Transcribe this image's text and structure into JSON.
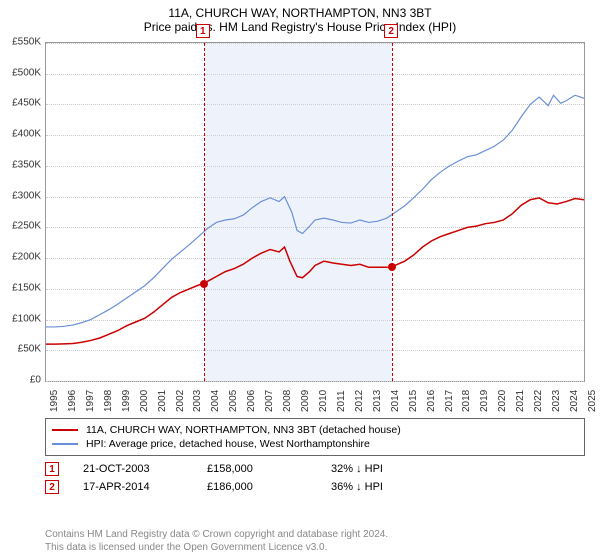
{
  "titles": {
    "line1": "11A, CHURCH WAY, NORTHAMPTON, NN3 3BT",
    "line2": "Price paid vs. HM Land Registry's House Price Index (HPI)",
    "fontsize": 12
  },
  "chart": {
    "type": "line",
    "background_color": "#ffffff",
    "grid_color": "#cccccc",
    "border_color": "#999999",
    "highlight_band_color": "#eef3fb",
    "y": {
      "min": 0,
      "max": 550000,
      "step": 50000,
      "prefix": "£",
      "suffix": "K",
      "divisor": 1000,
      "label_fontsize": 10
    },
    "x": {
      "years_start": 1995,
      "years_end": 2025,
      "label_fontsize": 10
    },
    "highlight": {
      "from_year": 2003.8,
      "to_year": 2014.3
    },
    "series": [
      {
        "name": "11A, CHURCH WAY, NORTHAMPTON, NN3 3BT (detached house)",
        "color": "#cc0000",
        "line_width": 1.5,
        "data": [
          [
            1995,
            60000
          ],
          [
            1995.5,
            60000
          ],
          [
            1996,
            60500
          ],
          [
            1996.5,
            61000
          ],
          [
            1997,
            63000
          ],
          [
            1997.5,
            66000
          ],
          [
            1998,
            70000
          ],
          [
            1998.5,
            76000
          ],
          [
            1999,
            82000
          ],
          [
            1999.5,
            90000
          ],
          [
            2000,
            96000
          ],
          [
            2000.5,
            102000
          ],
          [
            2001,
            112000
          ],
          [
            2001.5,
            124000
          ],
          [
            2002,
            136000
          ],
          [
            2002.5,
            144000
          ],
          [
            2003,
            150000
          ],
          [
            2003.5,
            156000
          ],
          [
            2003.8,
            158000
          ],
          [
            2004,
            162000
          ],
          [
            2004.5,
            170000
          ],
          [
            2005,
            178000
          ],
          [
            2005.5,
            183000
          ],
          [
            2006,
            190000
          ],
          [
            2006.5,
            200000
          ],
          [
            2007,
            208000
          ],
          [
            2007.5,
            214000
          ],
          [
            2008,
            210000
          ],
          [
            2008.3,
            218000
          ],
          [
            2008.6,
            195000
          ],
          [
            2009,
            170000
          ],
          [
            2009.3,
            168000
          ],
          [
            2009.7,
            178000
          ],
          [
            2010,
            188000
          ],
          [
            2010.5,
            195000
          ],
          [
            2011,
            192000
          ],
          [
            2011.5,
            190000
          ],
          [
            2012,
            188000
          ],
          [
            2012.5,
            190000
          ],
          [
            2013,
            185000
          ],
          [
            2013.5,
            185000
          ],
          [
            2014,
            185000
          ],
          [
            2014.3,
            186000
          ],
          [
            2015,
            195000
          ],
          [
            2015.5,
            205000
          ],
          [
            2016,
            218000
          ],
          [
            2016.5,
            228000
          ],
          [
            2017,
            235000
          ],
          [
            2017.5,
            240000
          ],
          [
            2018,
            245000
          ],
          [
            2018.5,
            250000
          ],
          [
            2019,
            252000
          ],
          [
            2019.5,
            256000
          ],
          [
            2020,
            258000
          ],
          [
            2020.5,
            262000
          ],
          [
            2021,
            272000
          ],
          [
            2021.5,
            286000
          ],
          [
            2022,
            295000
          ],
          [
            2022.5,
            298000
          ],
          [
            2023,
            290000
          ],
          [
            2023.5,
            288000
          ],
          [
            2024,
            292000
          ],
          [
            2024.5,
            297000
          ],
          [
            2025,
            295000
          ]
        ]
      },
      {
        "name": "HPI: Average price, detached house, West Northamptonshire",
        "color": "#6a8fd8",
        "line_width": 1.2,
        "data": [
          [
            1995,
            88000
          ],
          [
            1995.5,
            88000
          ],
          [
            1996,
            89000
          ],
          [
            1996.5,
            91000
          ],
          [
            1997,
            95000
          ],
          [
            1997.5,
            100000
          ],
          [
            1998,
            108000
          ],
          [
            1998.5,
            116000
          ],
          [
            1999,
            125000
          ],
          [
            1999.5,
            135000
          ],
          [
            2000,
            145000
          ],
          [
            2000.5,
            155000
          ],
          [
            2001,
            168000
          ],
          [
            2001.5,
            183000
          ],
          [
            2002,
            198000
          ],
          [
            2002.5,
            210000
          ],
          [
            2003,
            222000
          ],
          [
            2003.5,
            235000
          ],
          [
            2004,
            248000
          ],
          [
            2004.5,
            258000
          ],
          [
            2005,
            262000
          ],
          [
            2005.5,
            264000
          ],
          [
            2006,
            270000
          ],
          [
            2006.5,
            282000
          ],
          [
            2007,
            292000
          ],
          [
            2007.5,
            298000
          ],
          [
            2008,
            292000
          ],
          [
            2008.3,
            300000
          ],
          [
            2008.7,
            275000
          ],
          [
            2009,
            245000
          ],
          [
            2009.3,
            240000
          ],
          [
            2009.7,
            252000
          ],
          [
            2010,
            262000
          ],
          [
            2010.5,
            265000
          ],
          [
            2011,
            262000
          ],
          [
            2011.5,
            258000
          ],
          [
            2012,
            257000
          ],
          [
            2012.5,
            262000
          ],
          [
            2013,
            258000
          ],
          [
            2013.5,
            260000
          ],
          [
            2014,
            265000
          ],
          [
            2014.5,
            275000
          ],
          [
            2015,
            285000
          ],
          [
            2015.5,
            298000
          ],
          [
            2016,
            312000
          ],
          [
            2016.5,
            328000
          ],
          [
            2017,
            340000
          ],
          [
            2017.5,
            350000
          ],
          [
            2018,
            358000
          ],
          [
            2018.5,
            365000
          ],
          [
            2019,
            368000
          ],
          [
            2019.5,
            375000
          ],
          [
            2020,
            382000
          ],
          [
            2020.5,
            392000
          ],
          [
            2021,
            408000
          ],
          [
            2021.5,
            430000
          ],
          [
            2022,
            450000
          ],
          [
            2022.5,
            462000
          ],
          [
            2023,
            448000
          ],
          [
            2023.3,
            465000
          ],
          [
            2023.7,
            452000
          ],
          [
            2024,
            456000
          ],
          [
            2024.5,
            465000
          ],
          [
            2025,
            460000
          ]
        ]
      }
    ],
    "markers": [
      {
        "n": "1",
        "year": 2003.8,
        "value": 158000
      },
      {
        "n": "2",
        "year": 2014.3,
        "value": 186000
      }
    ]
  },
  "legend": {
    "border_color": "#666666",
    "fontsize": 10.5
  },
  "sales": [
    {
      "n": "1",
      "date": "21-OCT-2003",
      "price": "£158,000",
      "diff": "32% ↓ HPI"
    },
    {
      "n": "2",
      "date": "17-APR-2014",
      "price": "£186,000",
      "diff": "36% ↓ HPI"
    }
  ],
  "footer": {
    "line1": "Contains HM Land Registry data © Crown copyright and database right 2024.",
    "line2": "This data is licensed under the Open Government Licence v3.0.",
    "color": "#888888",
    "fontsize": 10
  }
}
